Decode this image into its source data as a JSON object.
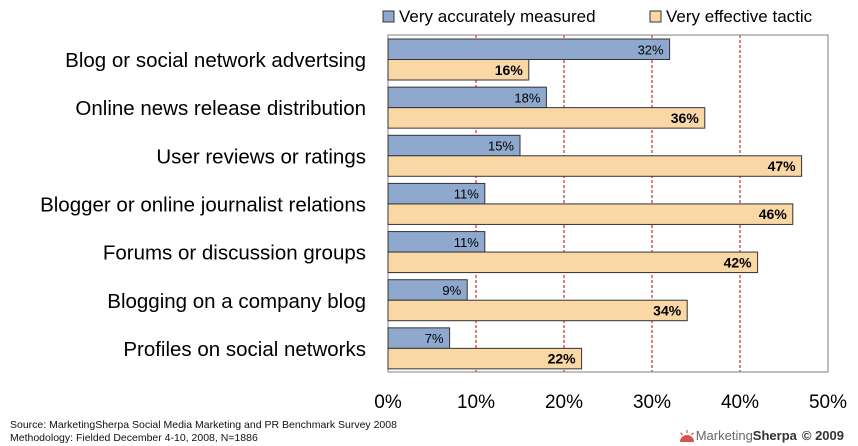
{
  "chart_data": {
    "type": "bar",
    "orientation": "horizontal",
    "categories": [
      "Blog or social network advertsing",
      "Online news release distribution",
      "User reviews or ratings",
      "Blogger or online journalist relations",
      "Forums or discussion groups",
      "Blogging on a company blog",
      "Profiles on social networks"
    ],
    "series": [
      {
        "name": "Very accurately measured",
        "values": [
          32,
          18,
          15,
          11,
          11,
          9,
          7
        ],
        "labels": [
          "32%",
          "18%",
          "15%",
          "11%",
          "11%",
          "9%",
          "7%"
        ],
        "color": "#8EA9CD"
      },
      {
        "name": "Very effective tactic",
        "values": [
          16,
          36,
          47,
          46,
          42,
          34,
          22
        ],
        "labels": [
          "16%",
          "36%",
          "47%",
          "46%",
          "42%",
          "34%",
          "22%"
        ],
        "color": "#FAD8A6"
      }
    ],
    "xlim": [
      0,
      50
    ],
    "xticks": [
      "0%",
      "10%",
      "20%",
      "30%",
      "40%",
      "50%"
    ],
    "grid": "vertical dashed",
    "grid_color": "#C00000",
    "legend": "top"
  },
  "source": {
    "line1": "Source: MarketingSherpa Social Media Marketing and PR Benchmark Survey 2008",
    "line2": "Methodology: Fielded December 4-10, 2008, N=1886"
  },
  "logo": {
    "brand_part1": "Marketing",
    "brand_part2": "Sherpa",
    "copyright": "© 2009"
  }
}
